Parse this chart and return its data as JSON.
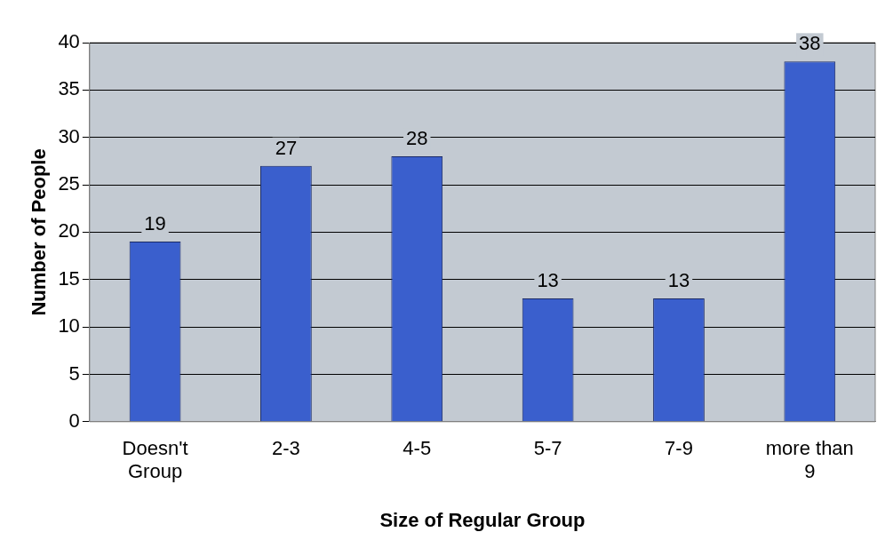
{
  "chart_data": {
    "type": "bar",
    "xlabel": "Size of Regular Group",
    "ylabel": "Number of People",
    "categories": [
      "Doesn't Group",
      "2-3",
      "4-5",
      "5-7",
      "7-9",
      "more than 9"
    ],
    "values": [
      19,
      27,
      28,
      13,
      13,
      38
    ],
    "color": "#3a5fcd",
    "ylim": [
      0,
      40
    ],
    "yticks": [
      0,
      5,
      10,
      15,
      20,
      25,
      30,
      35,
      40
    ],
    "grid": "y",
    "data_labels": true,
    "legend": false
  }
}
